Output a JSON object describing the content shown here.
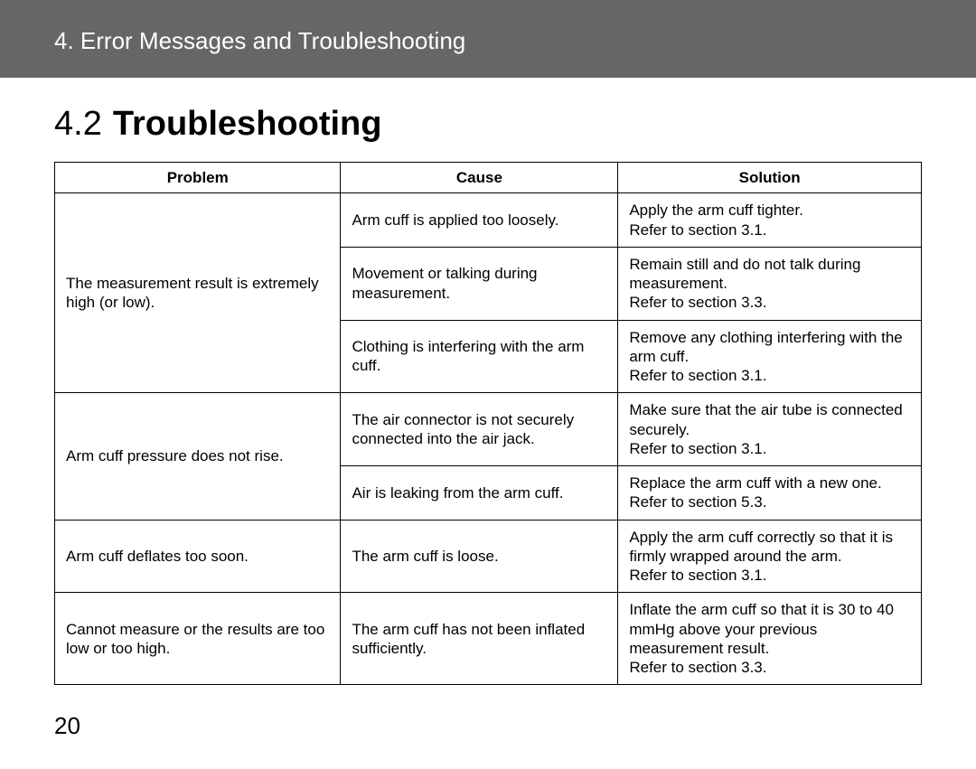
{
  "header": {
    "title": "4. Error Messages and Troubleshooting"
  },
  "section": {
    "number": "4.2",
    "title": "Troubleshooting"
  },
  "columns": {
    "problem": "Problem",
    "cause": "Cause",
    "solution": "Solution"
  },
  "problems": [
    {
      "problem": "The measurement result is extremely high (or low).",
      "rows": [
        {
          "cause": "Arm cuff is applied too loosely.",
          "solution": "Apply the arm cuff tighter.\nRefer to section 3.1."
        },
        {
          "cause": "Movement or talking during measurement.",
          "solution": "Remain still and do not talk during measurement.\nRefer to section 3.3."
        },
        {
          "cause": "Clothing is interfering with the arm cuff.",
          "solution": "Remove any clothing interfering with the arm cuff.\nRefer to section 3.1."
        }
      ]
    },
    {
      "problem": "Arm cuff pressure does not rise.",
      "rows": [
        {
          "cause": "The air connector is not securely connected into the air jack.",
          "solution": "Make sure that the air tube is connected securely.\nRefer to section 3.1."
        },
        {
          "cause": "Air is leaking from the arm cuff.",
          "solution": "Replace the arm cuff with a new one.\nRefer to section 5.3."
        }
      ]
    },
    {
      "problem": "Arm cuff deflates too soon.",
      "rows": [
        {
          "cause": "The arm cuff is loose.",
          "solution": "Apply the arm cuff correctly so that it is firmly wrapped around the arm.\nRefer to section 3.1."
        }
      ]
    },
    {
      "problem": "Cannot measure or the results are too low or too high.",
      "rows": [
        {
          "cause": "The arm cuff has not been inflated sufficiently.",
          "solution": "Inflate the arm cuff so that it is 30 to 40 mmHg above your previous measurement result.\nRefer to section 3.3."
        }
      ]
    }
  ],
  "page_number": "20"
}
